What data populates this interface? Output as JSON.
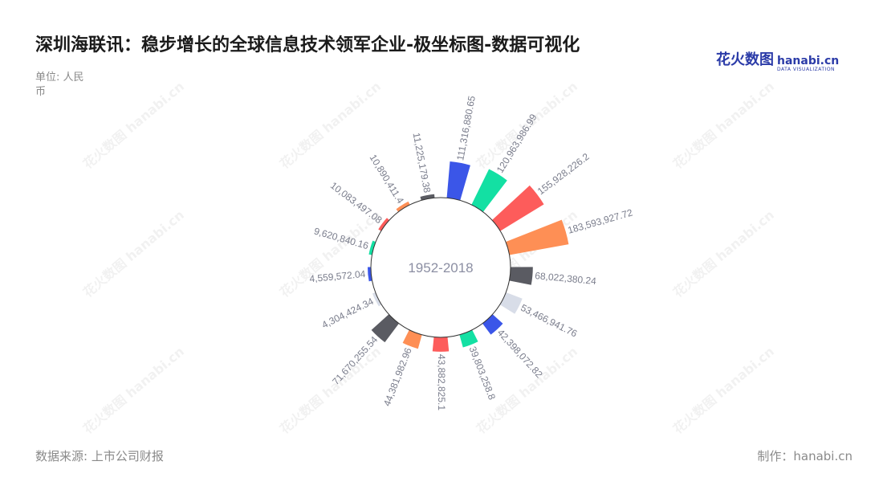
{
  "title": "深圳海联讯：稳步增长的全球信息技术领军企业-极坐标图-数据可视化",
  "unit": "单位: 人民币",
  "source": "数据来源: 上市公司财报",
  "maker": "制作：hanabi.cn",
  "logo": {
    "cn": "花火数图",
    "en": "hanabi.cn",
    "sub": "DATA VISUALIZATION"
  },
  "watermark": "花火数图 hanabi.cn",
  "colors": {
    "palette": [
      "#3b56e8",
      "#13e0a3",
      "#fd5c5b",
      "#fe8f55",
      "#5a5b62",
      "#d8dde8"
    ],
    "label": "#7a7d8c",
    "center_text": "#8c8fa3",
    "circle_stroke": "#333333"
  },
  "chart_data": {
    "type": "bar",
    "coordinate": "polar",
    "center_label": "1952-2018",
    "values": [
      111316880.65,
      120963986.99,
      155928226.2,
      183593927.72,
      68022380.24,
      53466941.76,
      42398072.82,
      39803258.8,
      43882825.1,
      44381982.96,
      71670255.54,
      4304424.34,
      4559572.04,
      9620840.16,
      10083497.08,
      10890411.4,
      11225179.38
    ],
    "labels": [
      "111,316,880.65",
      "120,963,986.99",
      "155,928,226.2",
      "183,593,927.72",
      "68,022,380.24",
      "53,466,941.76",
      "42,398,072.82",
      "39,803,258.8",
      "43,882,825.1",
      "44,381,982.96",
      "71,670,255.54",
      "4,304,424.34",
      "4,559,572.04",
      "9,620,840.16",
      "10,083,497.08",
      "10,890,411.4",
      "11,225,179.38"
    ]
  }
}
